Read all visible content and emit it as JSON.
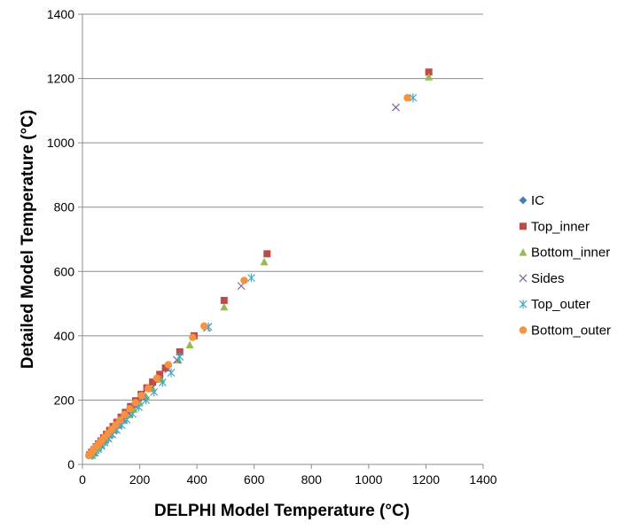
{
  "chart_data": {
    "type": "scatter",
    "title": "",
    "xlabel": "DELPHI Model Temperature (°C)",
    "ylabel": "Detailed Model Temperature (°C)",
    "xlim": [
      0,
      1400
    ],
    "ylim": [
      0,
      1400
    ],
    "x_ticks": [
      0,
      200,
      400,
      600,
      800,
      1000,
      1200,
      1400
    ],
    "y_ticks": [
      0,
      200,
      400,
      600,
      800,
      1000,
      1200,
      1400
    ],
    "x_tick_labels": [
      "0",
      "200",
      "400",
      "600",
      "800",
      "1000",
      "1200",
      "1400"
    ],
    "y_tick_labels": [
      "0",
      "200",
      "400",
      "600",
      "800",
      "1000",
      "1200",
      "1400"
    ],
    "grid": "horizontal",
    "legend_position": "right",
    "series": [
      {
        "name": "IC",
        "marker": "diamond",
        "color": "#4a7ebb",
        "points": [
          [
            28,
            30
          ],
          [
            35,
            36
          ],
          [
            42,
            44
          ],
          [
            50,
            52
          ],
          [
            58,
            60
          ],
          [
            66,
            68
          ],
          [
            75,
            78
          ],
          [
            85,
            88
          ],
          [
            95,
            98
          ],
          [
            105,
            108
          ],
          [
            118,
            120
          ],
          [
            130,
            133
          ],
          [
            145,
            148
          ],
          [
            160,
            163
          ],
          [
            178,
            180
          ],
          [
            195,
            198
          ],
          [
            210,
            214
          ]
        ]
      },
      {
        "name": "Top_inner",
        "marker": "square",
        "color": "#be4b48",
        "points": [
          [
            25,
            30
          ],
          [
            32,
            38
          ],
          [
            40,
            46
          ],
          [
            48,
            55
          ],
          [
            56,
            64
          ],
          [
            65,
            73
          ],
          [
            74,
            83
          ],
          [
            84,
            94
          ],
          [
            95,
            106
          ],
          [
            107,
            118
          ],
          [
            120,
            131
          ],
          [
            135,
            147
          ],
          [
            150,
            162
          ],
          [
            168,
            180
          ],
          [
            186,
            198
          ],
          [
            205,
            218
          ],
          [
            225,
            238
          ],
          [
            245,
            256
          ],
          [
            270,
            280
          ],
          [
            290,
            300
          ],
          [
            340,
            350
          ],
          [
            390,
            400
          ],
          [
            495,
            510
          ],
          [
            645,
            655
          ],
          [
            1210,
            1220
          ]
        ]
      },
      {
        "name": "Bottom_inner",
        "marker": "triangle",
        "color": "#98b954",
        "points": [
          [
            30,
            28
          ],
          [
            38,
            35
          ],
          [
            47,
            44
          ],
          [
            56,
            52
          ],
          [
            65,
            60
          ],
          [
            76,
            70
          ],
          [
            88,
            82
          ],
          [
            100,
            94
          ],
          [
            114,
            108
          ],
          [
            128,
            122
          ],
          [
            144,
            137
          ],
          [
            162,
            155
          ],
          [
            180,
            172
          ],
          [
            200,
            192
          ],
          [
            222,
            212
          ],
          [
            245,
            236
          ],
          [
            275,
            265
          ],
          [
            335,
            325
          ],
          [
            375,
            372
          ],
          [
            495,
            490
          ],
          [
            635,
            630
          ],
          [
            1210,
            1205
          ]
        ]
      },
      {
        "name": "Sides",
        "marker": "x",
        "color": "#7d60a0",
        "points": [
          [
            40,
            38
          ],
          [
            52,
            50
          ],
          [
            64,
            62
          ],
          [
            78,
            76
          ],
          [
            92,
            90
          ],
          [
            108,
            105
          ],
          [
            125,
            122
          ],
          [
            142,
            140
          ],
          [
            162,
            160
          ],
          [
            185,
            182
          ],
          [
            210,
            206
          ],
          [
            240,
            235
          ],
          [
            270,
            265
          ],
          [
            300,
            296
          ],
          [
            330,
            325
          ],
          [
            435,
            425
          ],
          [
            555,
            555
          ],
          [
            1095,
            1110
          ]
        ]
      },
      {
        "name": "Top_outer",
        "marker": "asterisk",
        "color": "#46aac5",
        "points": [
          [
            34,
            28
          ],
          [
            44,
            37
          ],
          [
            55,
            47
          ],
          [
            66,
            57
          ],
          [
            78,
            68
          ],
          [
            91,
            80
          ],
          [
            105,
            93
          ],
          [
            120,
            107
          ],
          [
            137,
            122
          ],
          [
            155,
            139
          ],
          [
            175,
            157
          ],
          [
            197,
            178
          ],
          [
            222,
            200
          ],
          [
            250,
            225
          ],
          [
            280,
            255
          ],
          [
            310,
            285
          ],
          [
            340,
            335
          ],
          [
            440,
            428
          ],
          [
            590,
            580
          ],
          [
            1155,
            1140
          ]
        ]
      },
      {
        "name": "Bottom_outer",
        "marker": "circle",
        "color": "#f69240",
        "points": [
          [
            22,
            28
          ],
          [
            30,
            36
          ],
          [
            38,
            45
          ],
          [
            47,
            54
          ],
          [
            56,
            63
          ],
          [
            66,
            73
          ],
          [
            77,
            84
          ],
          [
            89,
            96
          ],
          [
            102,
            109
          ],
          [
            116,
            123
          ],
          [
            131,
            138
          ],
          [
            147,
            155
          ],
          [
            165,
            173
          ],
          [
            185,
            192
          ],
          [
            206,
            214
          ],
          [
            230,
            236
          ],
          [
            260,
            268
          ],
          [
            300,
            310
          ],
          [
            385,
            395
          ],
          [
            425,
            430
          ],
          [
            565,
            572
          ],
          [
            1135,
            1140
          ]
        ]
      }
    ]
  }
}
